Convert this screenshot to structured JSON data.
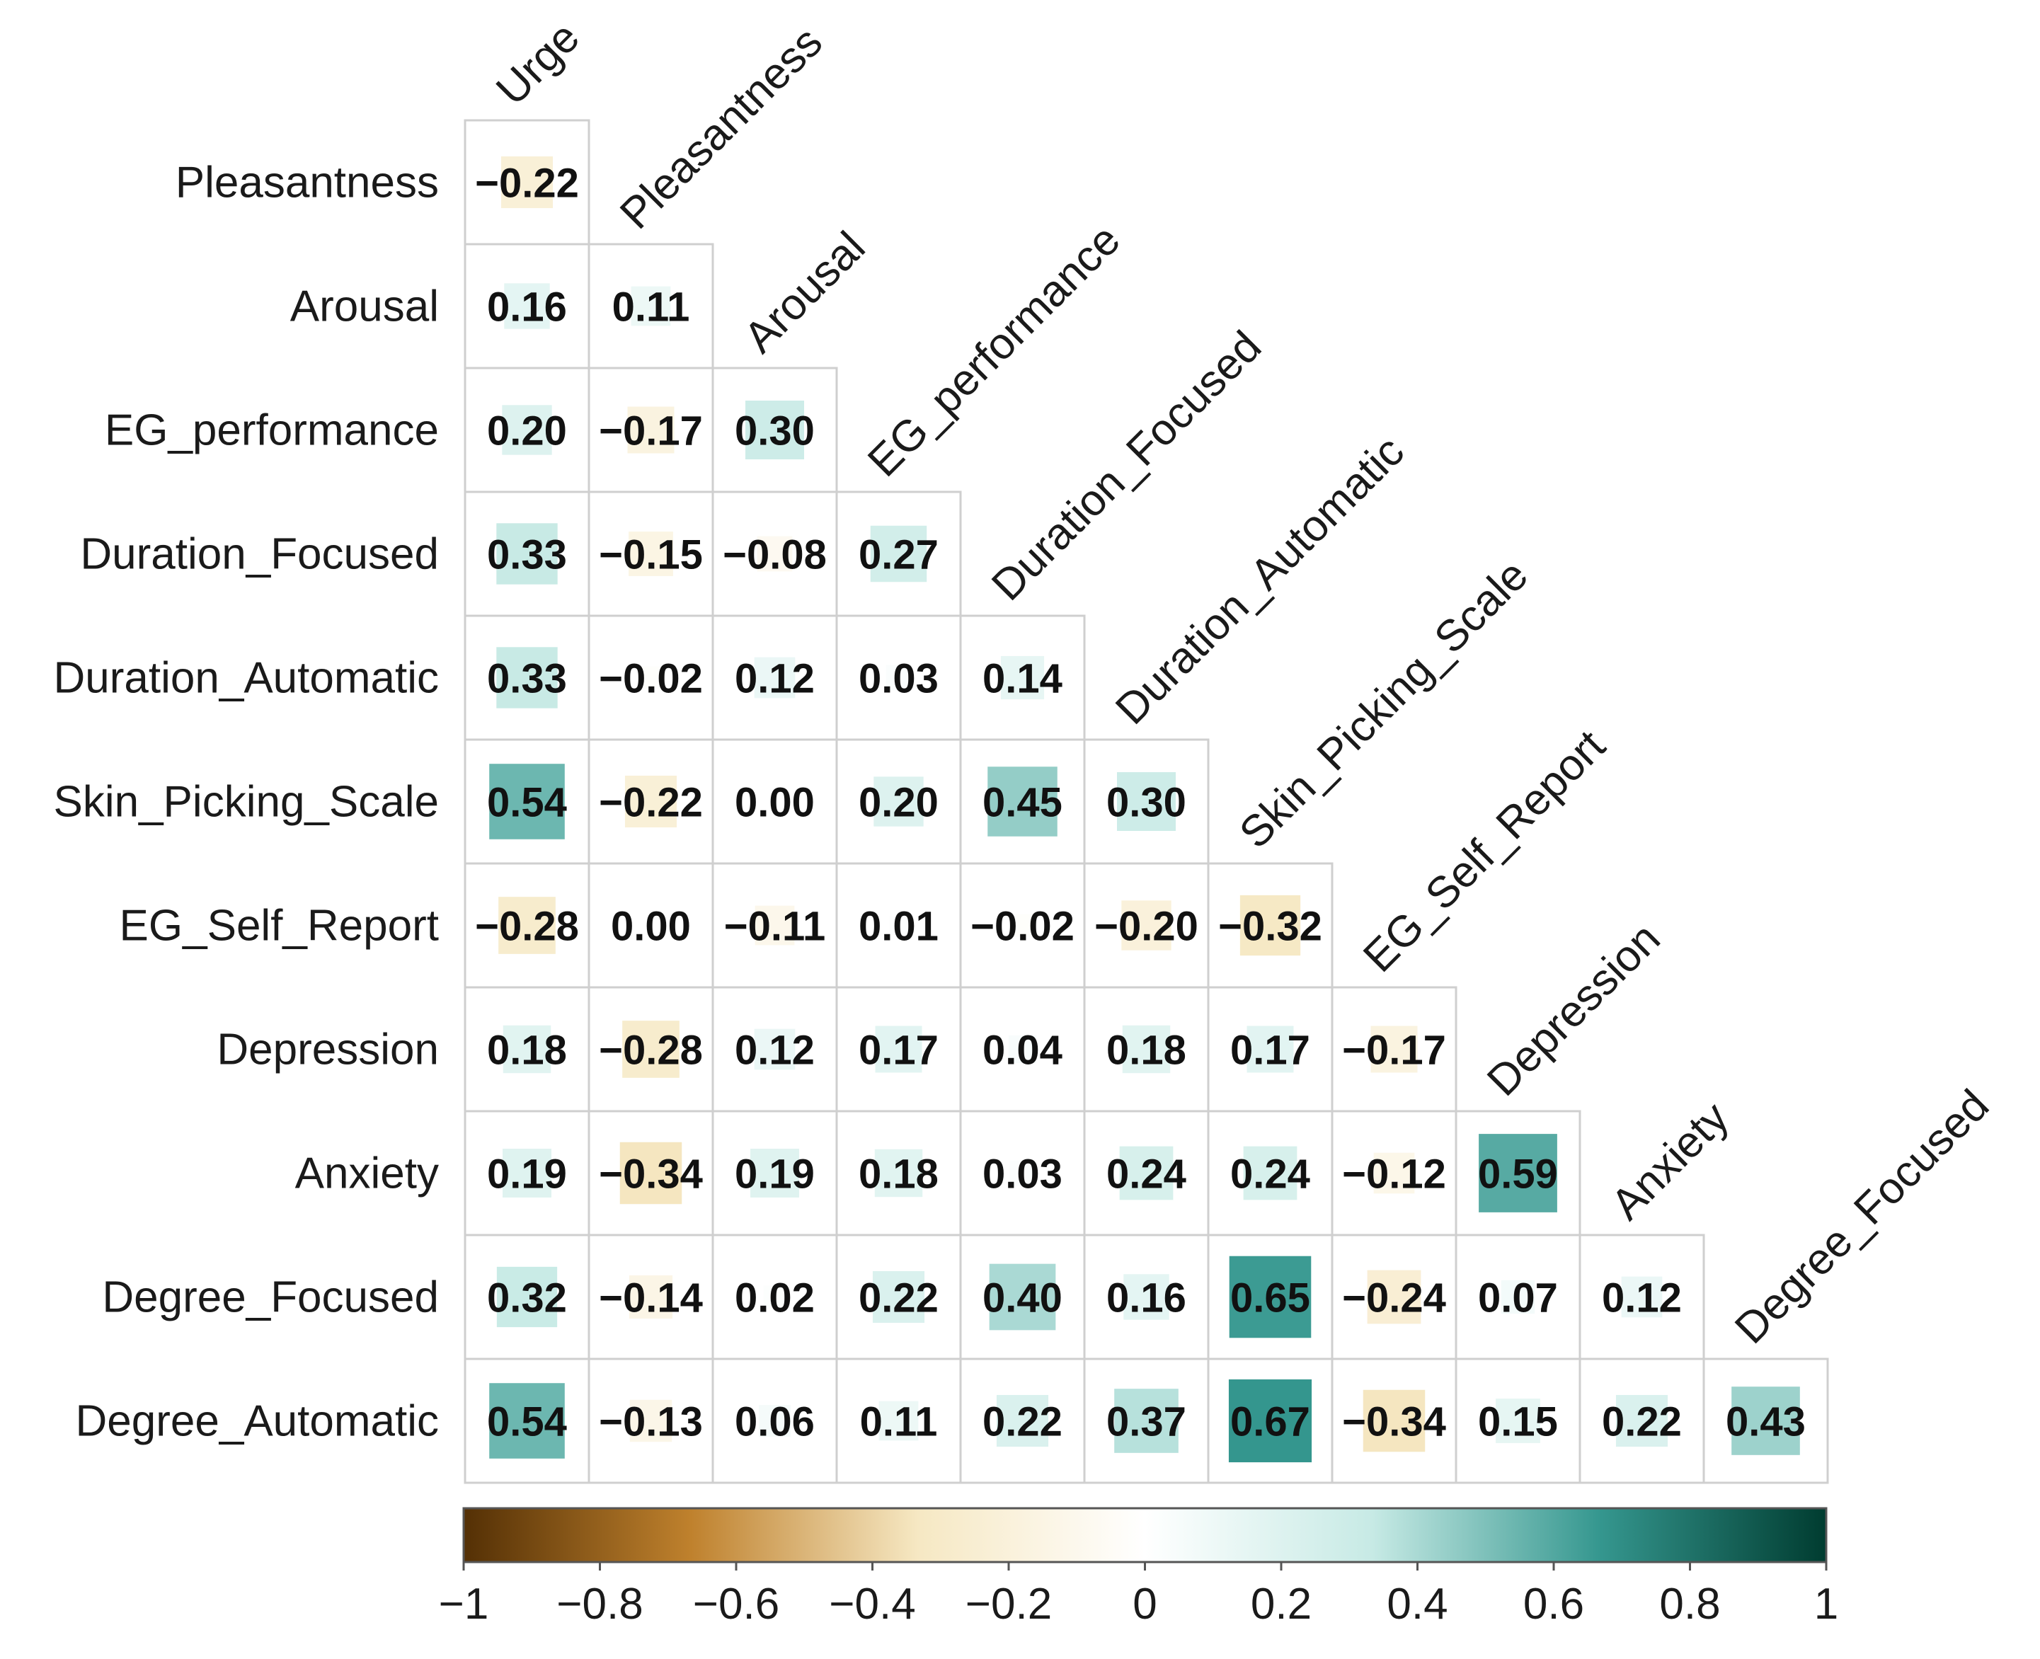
{
  "chart_data": {
    "type": "heatmap",
    "subtype": "correlation-lower-triangle",
    "variables": [
      "Urge",
      "Pleasantness",
      "Arousal",
      "EG_performance",
      "Duration_Focused",
      "Duration_Automatic",
      "Skin_Picking_Scale",
      "EG_Self_Report",
      "Depression",
      "Anxiety",
      "Degree_Focused",
      "Degree_Automatic"
    ],
    "row_labels": [
      "Pleasantness",
      "Arousal",
      "EG_performance",
      "Duration_Focused",
      "Duration_Automatic",
      "Skin_Picking_Scale",
      "EG_Self_Report",
      "Depression",
      "Anxiety",
      "Degree_Focused",
      "Degree_Automatic"
    ],
    "col_labels": [
      "Urge",
      "Pleasantness",
      "Arousal",
      "EG_performance",
      "Duration_Focused",
      "Duration_Automatic",
      "Skin_Picking_Scale",
      "EG_Self_Report",
      "Depression",
      "Anxiety",
      "Degree_Focused"
    ],
    "values": [
      [
        -0.22
      ],
      [
        0.16,
        0.11
      ],
      [
        0.2,
        -0.17,
        0.3
      ],
      [
        0.33,
        -0.15,
        -0.08,
        0.27
      ],
      [
        0.33,
        -0.02,
        0.12,
        0.03,
        0.14
      ],
      [
        0.54,
        -0.22,
        0.0,
        0.2,
        0.45,
        0.3
      ],
      [
        -0.28,
        0.0,
        -0.11,
        0.01,
        -0.02,
        -0.2,
        -0.32
      ],
      [
        0.18,
        -0.28,
        0.12,
        0.17,
        0.04,
        0.18,
        0.17,
        -0.17
      ],
      [
        0.19,
        -0.34,
        0.19,
        0.18,
        0.03,
        0.24,
        0.24,
        -0.12,
        0.59
      ],
      [
        0.32,
        -0.14,
        0.02,
        0.22,
        0.4,
        0.16,
        0.65,
        -0.24,
        0.07,
        0.12
      ],
      [
        0.54,
        -0.13,
        0.06,
        0.11,
        0.22,
        0.37,
        0.67,
        -0.34,
        0.15,
        0.22,
        0.43
      ]
    ],
    "value_labels": [
      [
        "−0.22"
      ],
      [
        "0.16",
        "0.11"
      ],
      [
        "0.20",
        "−0.17",
        "0.30"
      ],
      [
        "0.33",
        "−0.15",
        "−0.08",
        "0.27"
      ],
      [
        "0.33",
        "−0.02",
        "0.12",
        "0.03",
        "0.14"
      ],
      [
        "0.54",
        "−0.22",
        "0.00",
        "0.20",
        "0.45",
        "0.30"
      ],
      [
        "−0.28",
        "0.00",
        "−0.11",
        "0.01",
        "−0.02",
        "−0.20",
        "−0.32"
      ],
      [
        "0.18",
        "−0.28",
        "0.12",
        "0.17",
        "0.04",
        "0.18",
        "0.17",
        "−0.17"
      ],
      [
        "0.19",
        "−0.34",
        "0.19",
        "0.18",
        "0.03",
        "0.24",
        "0.24",
        "−0.12",
        "0.59"
      ],
      [
        "0.32",
        "−0.14",
        "0.02",
        "0.22",
        "0.40",
        "0.16",
        "0.65",
        "−0.24",
        "0.07",
        "0.12"
      ],
      [
        "0.54",
        "−0.13",
        "0.06",
        "0.11",
        "0.22",
        "0.37",
        "0.67",
        "−0.34",
        "0.15",
        "0.22",
        "0.43"
      ]
    ],
    "colorbar": {
      "range": [
        -1,
        1
      ],
      "ticks": [
        -1,
        -0.8,
        -0.6,
        -0.4,
        -0.2,
        0,
        0.2,
        0.4,
        0.6,
        0.8,
        1
      ],
      "tick_labels": [
        "−1",
        "−0.8",
        "−0.6",
        "−0.4",
        "−0.2",
        "0",
        "0.2",
        "0.4",
        "0.6",
        "0.8",
        "1"
      ],
      "colors": [
        "#543005",
        "#bf812d",
        "#f6e8c3",
        "#ffffff",
        "#c7eae5",
        "#35978f",
        "#003c30"
      ]
    },
    "square_size_scales_with_abs_value": true,
    "legend_position": "bottom"
  }
}
